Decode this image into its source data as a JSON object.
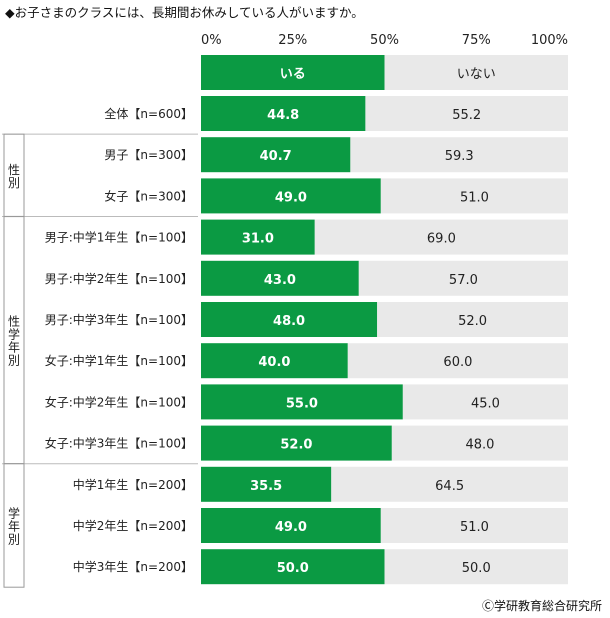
{
  "title": "◆お子さまのクラスには、長期間お休みしている人がいますか。",
  "credit": "Ⓒ学研教育総合研究所",
  "colors": {
    "primary": "#0b9a43",
    "secondary": "#e9e9e9",
    "bar_text_light": "#ffffff",
    "bar_text_dark": "#222222",
    "divider": "#bbbbbb"
  },
  "chart_data": {
    "type": "bar",
    "orientation": "horizontal",
    "stacked": true,
    "percent_stacked": true,
    "xlim": [
      0,
      100
    ],
    "xticks": [
      "0%",
      "25%",
      "50%",
      "75%",
      "100%"
    ],
    "legend": {
      "placement": "top",
      "entries": [
        "いる",
        "いない"
      ]
    },
    "series": [
      {
        "name": "いる",
        "values": [
          44.8,
          40.7,
          49.0,
          31.0,
          43.0,
          48.0,
          40.0,
          55.0,
          52.0,
          35.5,
          49.0,
          50.0
        ]
      },
      {
        "name": "いない",
        "values": [
          55.2,
          59.3,
          51.0,
          69.0,
          57.0,
          52.0,
          60.0,
          45.0,
          48.0,
          64.5,
          51.0,
          50.0
        ]
      }
    ],
    "value_labels": [
      [
        "44.8",
        "55.2"
      ],
      [
        "40.7",
        "59.3"
      ],
      [
        "49.0",
        "51.0"
      ],
      [
        "31.0",
        "69.0"
      ],
      [
        "43.0",
        "57.0"
      ],
      [
        "48.0",
        "52.0"
      ],
      [
        "40.0",
        "60.0"
      ],
      [
        "55.0",
        "45.0"
      ],
      [
        "52.0",
        "48.0"
      ],
      [
        "35.5",
        "64.5"
      ],
      [
        "49.0",
        "51.0"
      ],
      [
        "50.0",
        "50.0"
      ]
    ],
    "categories": [
      "全体【n=600】",
      "男子【n=300】",
      "女子【n=300】",
      "男子:中学1年生【n=100】",
      "男子:中学2年生【n=100】",
      "男子:中学3年生【n=100】",
      "女子:中学1年生【n=100】",
      "女子:中学2年生【n=100】",
      "女子:中学3年生【n=100】",
      "中学1年生【n=200】",
      "中学2年生【n=200】",
      "中学3年生【n=200】"
    ],
    "groups": [
      {
        "label": "",
        "rows": [
          0
        ]
      },
      {
        "label": "性別",
        "rows": [
          1,
          2
        ]
      },
      {
        "label": "性学年別",
        "rows": [
          3,
          4,
          5,
          6,
          7,
          8
        ]
      },
      {
        "label": "学年別",
        "rows": [
          9,
          10,
          11
        ]
      }
    ]
  }
}
